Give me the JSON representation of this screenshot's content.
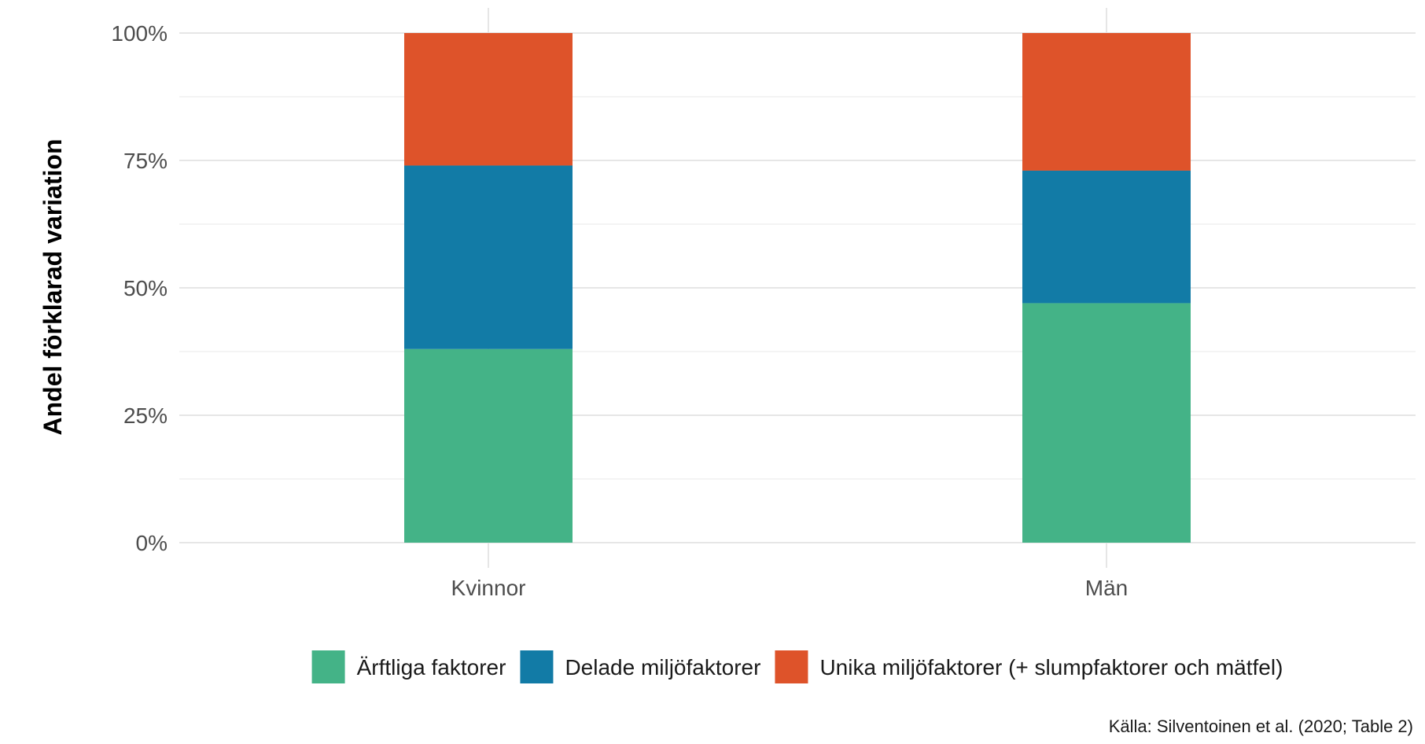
{
  "chart_data": {
    "type": "bar",
    "stacked": true,
    "categories": [
      "Kvinnor",
      "Män"
    ],
    "series": [
      {
        "name": "Ärftliga faktorer",
        "color": "#44b387",
        "values": [
          0.38,
          0.47
        ]
      },
      {
        "name": "Delade miljöfaktorer",
        "color": "#127ba6",
        "values": [
          0.36,
          0.26
        ]
      },
      {
        "name": "Unika miljöfaktorer (+ slumpfaktorer och mätfel)",
        "color": "#de532a",
        "values": [
          0.26,
          0.27
        ]
      }
    ],
    "ylabel": "Andel förklarad variation",
    "xlabel": "",
    "ylim": [
      0,
      1
    ],
    "yticks": [
      0,
      0.25,
      0.5,
      0.75,
      1.0
    ],
    "ytick_labels": [
      "0%",
      "25%",
      "50%",
      "75%",
      "100%"
    ],
    "grid": true,
    "legend_position": "bottom",
    "caption": "Källa: Silventoinen et al. (2020; Table 2)"
  }
}
